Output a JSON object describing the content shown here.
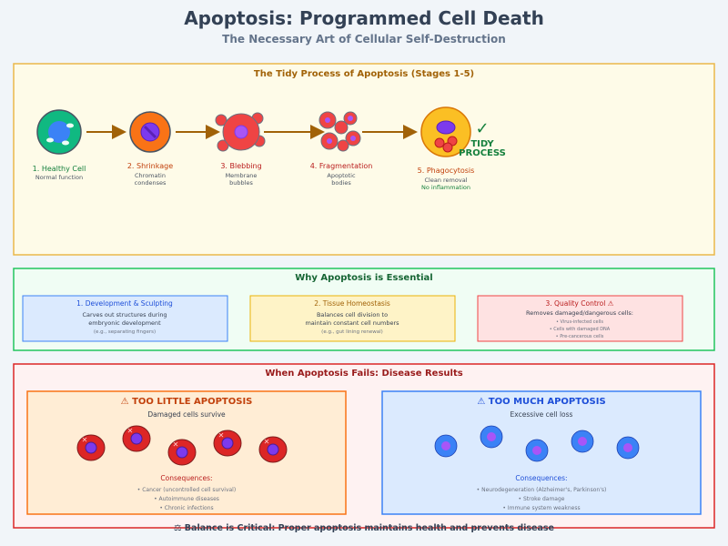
{
  "title": "Apoptosis: Programmed Cell Death",
  "subtitle": "The Necessary Art of Cellular Self-Destruction",
  "process": {
    "heading": "The Tidy Process of Apoptosis (Stages 1-5)",
    "stages": [
      {
        "label": "1. Healthy Cell",
        "desc": [
          "Normal function"
        ]
      },
      {
        "label": "2. Shrinkage",
        "desc": [
          "Chromatin",
          "condenses"
        ]
      },
      {
        "label": "3. Blebbing",
        "desc": [
          "Membrane",
          "bubbles"
        ]
      },
      {
        "label": "4. Fragmentation",
        "desc": [
          "Apoptotic",
          "bodies"
        ]
      },
      {
        "label": "5. Phagocytosis",
        "desc": [
          "Clean removal",
          "No inflammation"
        ]
      }
    ],
    "badge": {
      "check": "✓",
      "line1": "TIDY",
      "line2": "PROCESS"
    }
  },
  "essential": {
    "heading": "Why Apoptosis is Essential",
    "cards": [
      {
        "title": "1. Development & Sculpting",
        "lines": [
          "Carves out structures during",
          "embryonic development"
        ],
        "note": [
          "(e.g., separating fingers)"
        ]
      },
      {
        "title": "2. Tissue Homeostasis",
        "lines": [
          "Balances cell division to",
          "maintain constant cell numbers"
        ],
        "note": [
          "(e.g., gut lining renewal)"
        ]
      },
      {
        "title": "3. Quality Control ⚠",
        "lines": [
          "Removes damaged/dangerous cells:"
        ],
        "note": [
          "• Virus-infected cells",
          "• Cells with damaged DNA",
          "• Pre-cancerous cells"
        ]
      }
    ]
  },
  "fails": {
    "heading": "When Apoptosis Fails: Disease Results",
    "little": {
      "title": "⚠ TOO LITTLE APOPTOSIS",
      "subtitle": "Damaged cells survive",
      "consequences_label": "Consequences:",
      "items": [
        "• Cancer (uncontrolled cell survival)",
        "• Autoimmune diseases",
        "• Chronic infections"
      ]
    },
    "much": {
      "title": "⚠ TOO MUCH APOPTOSIS",
      "subtitle": "Excessive cell loss",
      "consequences_label": "Consequences:",
      "items": [
        "• Neurodegeneration (Alzheimer's, Parkinson's)",
        "• Stroke damage",
        "• Immune system weakness"
      ]
    }
  },
  "footer": "⚖ Balance is Critical: Proper apoptosis maintains health and prevents disease"
}
